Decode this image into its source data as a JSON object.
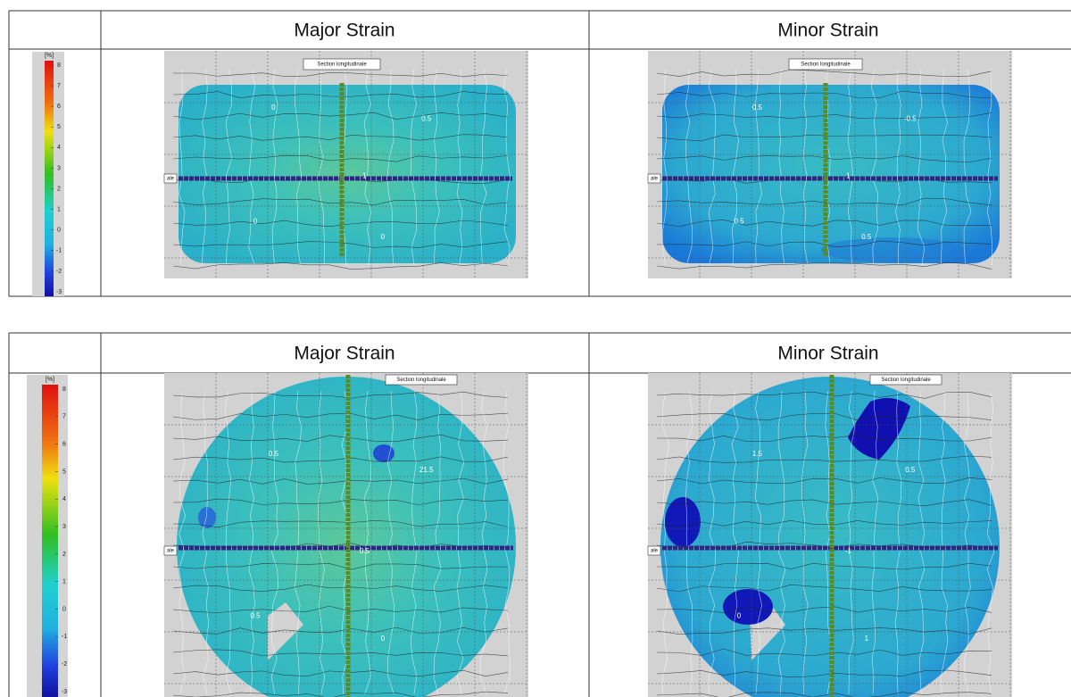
{
  "figures": [
    {
      "colorbar": {
        "unit": "[%]",
        "ticks": [
          8,
          7,
          6,
          5,
          4,
          3,
          2,
          1,
          0,
          -1,
          -2,
          -3
        ]
      },
      "panels": [
        {
          "title": "Major Strain",
          "section_label": "Section longitudinale",
          "cut_label": "ale",
          "contour_labels": [
            "0",
            "0.5",
            "1",
            "0",
            "0"
          ]
        },
        {
          "title": "Minor Strain",
          "section_label": "Section longitudinale",
          "cut_label": "ale",
          "contour_labels": [
            "0.5",
            "-0.5",
            "1",
            "0.5",
            "0.5"
          ]
        }
      ]
    },
    {
      "colorbar": {
        "unit": "[%]",
        "ticks": [
          8,
          7,
          6,
          5,
          4,
          3,
          2,
          1,
          0,
          -1,
          -2,
          -3
        ]
      },
      "panels": [
        {
          "title": "Major Strain",
          "section_label": "Section longitudinale",
          "cut_label": "ale",
          "contour_labels": [
            "0.5",
            "21.5",
            "0.5",
            "0.5",
            "0"
          ]
        },
        {
          "title": "Minor Strain",
          "section_label": "Section longitudinale",
          "cut_label": "ale",
          "contour_labels": [
            "1.5",
            "0.5",
            "-1",
            "0",
            "1"
          ]
        }
      ]
    }
  ]
}
